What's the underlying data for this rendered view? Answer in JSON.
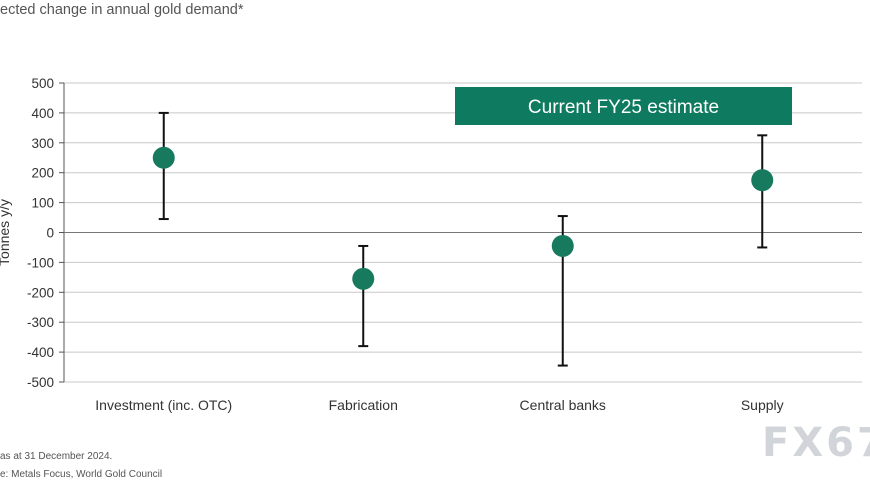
{
  "header": {
    "subtitle": "ected change in annual gold demand*"
  },
  "footer": {
    "note": "as at 31 December 2024.",
    "source": "e: Metals Focus, World Gold Council"
  },
  "watermark": "FX67",
  "chart_data": {
    "type": "scatter",
    "ylabel": "Tonnes y/y",
    "ylim": [
      -500,
      500
    ],
    "yticks": [
      500,
      400,
      300,
      200,
      100,
      0,
      -100,
      -200,
      -300,
      -400,
      -500
    ],
    "grid": true,
    "categories": [
      "Investment (inc. OTC)",
      "Fabrication",
      "Central banks",
      "Supply"
    ],
    "series": [
      {
        "name": "Current FY25 estimate",
        "values": [
          250,
          -155,
          -45,
          175
        ],
        "low": [
          45,
          -380,
          -445,
          -50
        ],
        "high": [
          400,
          -45,
          55,
          325
        ]
      }
    ],
    "legend": "top-right",
    "colors": {
      "marker": "#177a5e",
      "errorbar": "#111111",
      "legend_bg": "#0e7a5f",
      "legend_text": "#ffffff",
      "grid": "#c8c8c8"
    }
  }
}
